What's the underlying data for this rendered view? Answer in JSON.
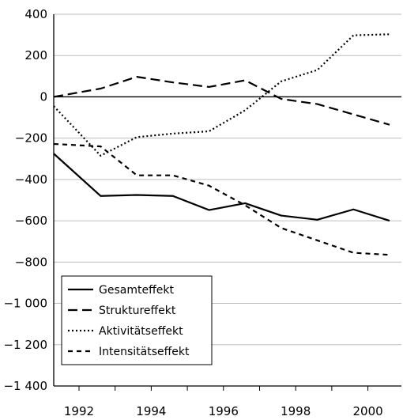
{
  "chart_data": {
    "type": "line",
    "title": "",
    "xlabel": "",
    "ylabel": "",
    "x": [
      1991.5,
      1992.8,
      1993.8,
      1994.8,
      1995.8,
      1996.8,
      1997.8,
      1998.8,
      1999.8,
      2000.8
    ],
    "xlim": [
      1991.5,
      2000.8
    ],
    "ylim": [
      -1400,
      400
    ],
    "grid": true,
    "legend_position": "bottom-left",
    "x_ticks": [
      1992,
      1994,
      1996,
      1998,
      2000
    ],
    "x_tick_labels": [
      "1992",
      "1994",
      "1996",
      "1998",
      "2000"
    ],
    "y_ticks": [
      400,
      200,
      0,
      -200,
      -400,
      -600,
      -800,
      -1000,
      -1200,
      -1400
    ],
    "y_tick_labels": [
      "400",
      "200",
      "0",
      "−200",
      "−400",
      "−600",
      "−800",
      "−1 000",
      "−1 200",
      "−1 400"
    ],
    "series": [
      {
        "name": "Gesamteffekt",
        "dash": "solid",
        "values": [
          -275,
          -480,
          -475,
          -480,
          -548,
          -515,
          -575,
          -595,
          -545,
          -600
        ]
      },
      {
        "name": "Struktureffekt",
        "dash": "longdash",
        "values": [
          0,
          40,
          97,
          70,
          48,
          80,
          -10,
          -35,
          -85,
          -135
        ]
      },
      {
        "name": "Aktivitätseffekt",
        "dash": "dotted",
        "values": [
          -45,
          -285,
          -195,
          -178,
          -167,
          -65,
          75,
          130,
          298,
          303
        ]
      },
      {
        "name": "Intensitätseffekt",
        "dash": "shortdash",
        "values": [
          -228,
          -240,
          -380,
          -380,
          -430,
          -525,
          -635,
          -695,
          -755,
          -765
        ]
      }
    ]
  }
}
